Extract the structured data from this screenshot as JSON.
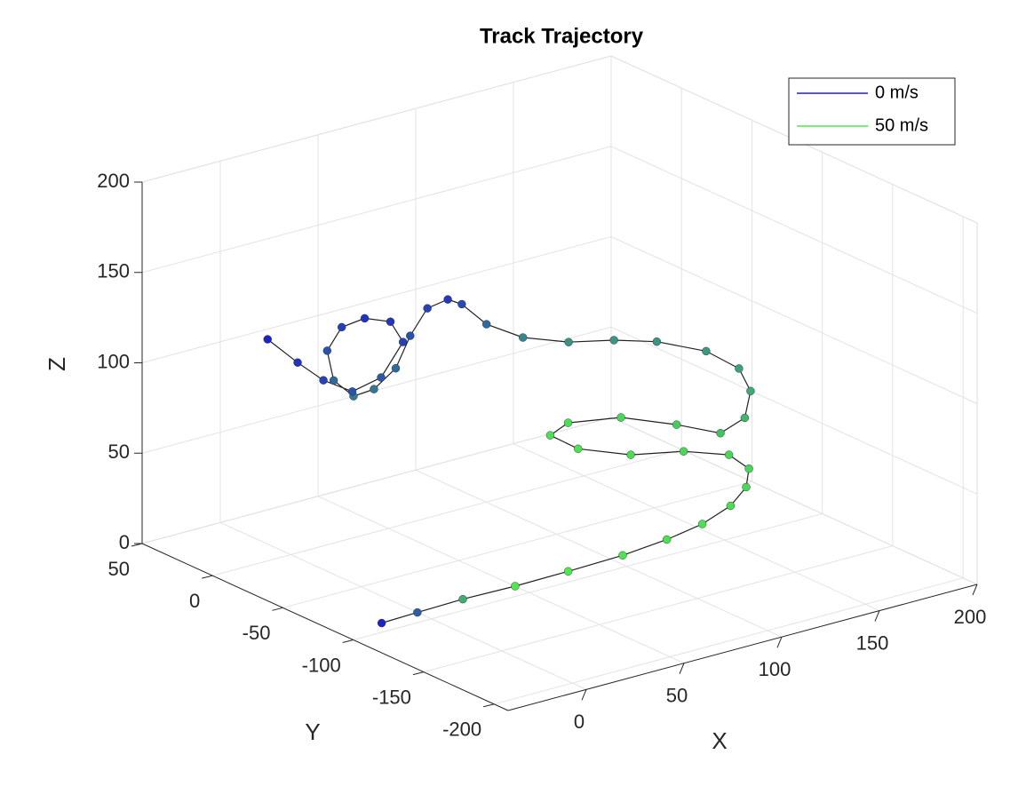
{
  "chart_data": {
    "type": "line3d",
    "title": "Track Trajectory",
    "xlabel": "X",
    "ylabel": "Y",
    "zlabel": "Z",
    "x": [
      -19,
      0,
      24,
      50,
      75,
      100,
      119,
      135,
      148,
      156,
      161,
      158,
      142,
      120,
      106,
      104,
      116,
      133,
      142,
      145,
      156,
      164,
      166,
      160,
      147,
      133,
      117,
      103,
      93,
      89,
      84,
      75,
      59,
      48,
      39,
      30,
      22,
      23,
      29,
      35,
      46,
      51,
      47,
      38,
      29,
      23,
      17
    ],
    "y": [
      -91,
      -90,
      -89,
      -90,
      -93,
      -97,
      -102,
      -105,
      -107,
      -107,
      -102,
      -92,
      -82,
      -75,
      -57,
      -40,
      -36,
      -50,
      -77,
      -104,
      -106,
      -99,
      -88,
      -73,
      -56,
      -45,
      -35,
      -22,
      -10,
      2,
      5,
      7,
      -3,
      -8,
      -5,
      -3,
      0,
      6,
      4,
      -4,
      -7,
      -9,
      1,
      9,
      17,
      27,
      40
    ],
    "z": [
      0,
      0,
      0,
      0,
      2,
      5,
      10,
      15,
      22,
      30,
      37,
      42,
      45,
      47,
      48,
      50,
      52,
      55,
      58,
      62,
      68,
      78,
      86,
      92,
      95,
      96,
      96,
      98,
      104,
      112,
      115,
      112,
      105,
      92,
      82,
      80,
      90,
      104,
      116,
      122,
      118,
      106,
      84,
      76,
      82,
      90,
      100
    ],
    "speed": [
      0,
      15,
      35,
      50,
      50,
      49,
      48,
      48,
      47,
      46,
      45,
      45,
      46,
      47,
      48,
      48,
      47,
      45,
      43,
      40,
      37,
      34,
      32,
      30,
      29,
      29,
      28,
      25,
      18,
      10,
      6,
      8,
      12,
      18,
      22,
      22,
      18,
      12,
      7,
      4,
      5,
      8,
      14,
      12,
      8,
      4,
      0
    ],
    "clim": [
      0,
      50
    ],
    "legend": [
      {
        "name": "0 m/s",
        "color": "#1f22c8"
      },
      {
        "name": "50 m/s",
        "color": "#4fe84f"
      }
    ],
    "legend_position": "northeast",
    "line_color": "#222222",
    "xlim": [
      -40,
      200
    ],
    "ylim": [
      -210,
      50
    ],
    "zlim": [
      0,
      200
    ],
    "xticks": [
      0,
      50,
      100,
      150,
      200
    ],
    "yticks": [
      -200,
      -150,
      -100,
      -50,
      0,
      50
    ],
    "zticks": [
      0,
      50,
      100,
      150,
      200
    ],
    "grid": true
  }
}
